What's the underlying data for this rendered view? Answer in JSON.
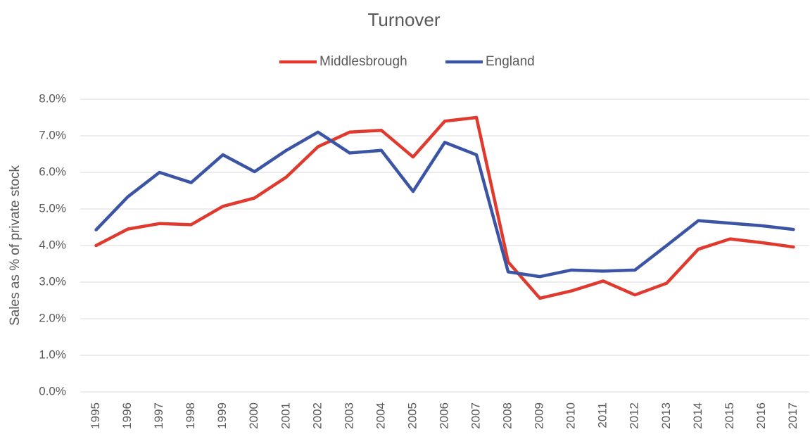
{
  "chart_data": {
    "type": "line",
    "title": "Turnover",
    "y_label": "Sales as % of private stock",
    "categories": [
      "1995",
      "1996",
      "1997",
      "1998",
      "1999",
      "2000",
      "2001",
      "2002",
      "2003",
      "2004",
      "2005",
      "2006",
      "2007",
      "2008",
      "2009",
      "2010",
      "2011",
      "2012",
      "2013",
      "2014",
      "2015",
      "2016",
      "2017"
    ],
    "series": [
      {
        "name": "Middlesbrough",
        "color": "#e03a2e",
        "values": [
          4.0,
          4.45,
          4.6,
          4.57,
          5.07,
          5.3,
          5.87,
          6.7,
          7.1,
          7.15,
          6.42,
          7.4,
          7.5,
          3.55,
          2.56,
          2.76,
          3.03,
          2.65,
          2.97,
          3.9,
          4.18,
          4.08,
          3.96
        ]
      },
      {
        "name": "England",
        "color": "#3b54a4",
        "values": [
          4.43,
          5.33,
          6.0,
          5.72,
          6.48,
          6.02,
          6.6,
          7.1,
          6.53,
          6.6,
          5.48,
          6.82,
          6.48,
          3.28,
          3.15,
          3.33,
          3.3,
          3.33,
          4.0,
          4.68,
          4.61,
          4.54,
          4.44
        ]
      }
    ],
    "ylim": [
      0,
      8
    ],
    "yticks": [
      {
        "value": 0,
        "label": "0.0%"
      },
      {
        "value": 1,
        "label": "1.0%"
      },
      {
        "value": 2,
        "label": "2.0%"
      },
      {
        "value": 3,
        "label": "3.0%"
      },
      {
        "value": 4,
        "label": "4.0%"
      },
      {
        "value": 5,
        "label": "5.0%"
      },
      {
        "value": 6,
        "label": "6.0%"
      },
      {
        "value": 7,
        "label": "7.0%"
      },
      {
        "value": 8,
        "label": "8.0%"
      }
    ],
    "grid": true,
    "legend": "top"
  }
}
